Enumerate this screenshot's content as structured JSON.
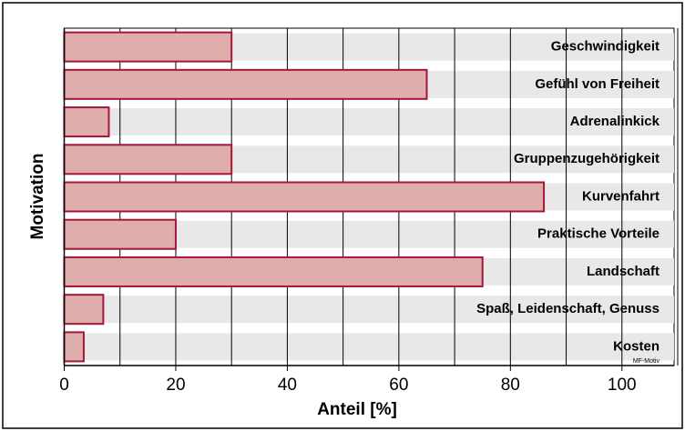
{
  "chart_data": {
    "type": "bar",
    "orientation": "horizontal",
    "xlabel": "Anteil [%]",
    "ylabel": "Motivation",
    "annotation": "MF-Motiv",
    "categories": [
      "Geschwindigkeit",
      "Gefühl von Freiheit",
      "Adrenalinkick",
      "Gruppenzugehörigkeit",
      "Kurvenfahrt",
      "Praktische Vorteile",
      "Landschaft",
      "Spaß, Leidenschaft, Genuss",
      "Kosten"
    ],
    "values": [
      30,
      65,
      8,
      30,
      86,
      20,
      75,
      7,
      3.5
    ],
    "color": "#e0adad",
    "edge_color": "#a5163a",
    "band_color": "#e8e8e8",
    "xlim": [
      0,
      110
    ],
    "xticks": [
      0,
      20,
      40,
      60,
      80,
      100
    ],
    "xgrid": [
      0,
      10,
      20,
      30,
      40,
      50,
      60,
      70,
      80,
      90,
      100,
      110
    ],
    "grid": true
  }
}
